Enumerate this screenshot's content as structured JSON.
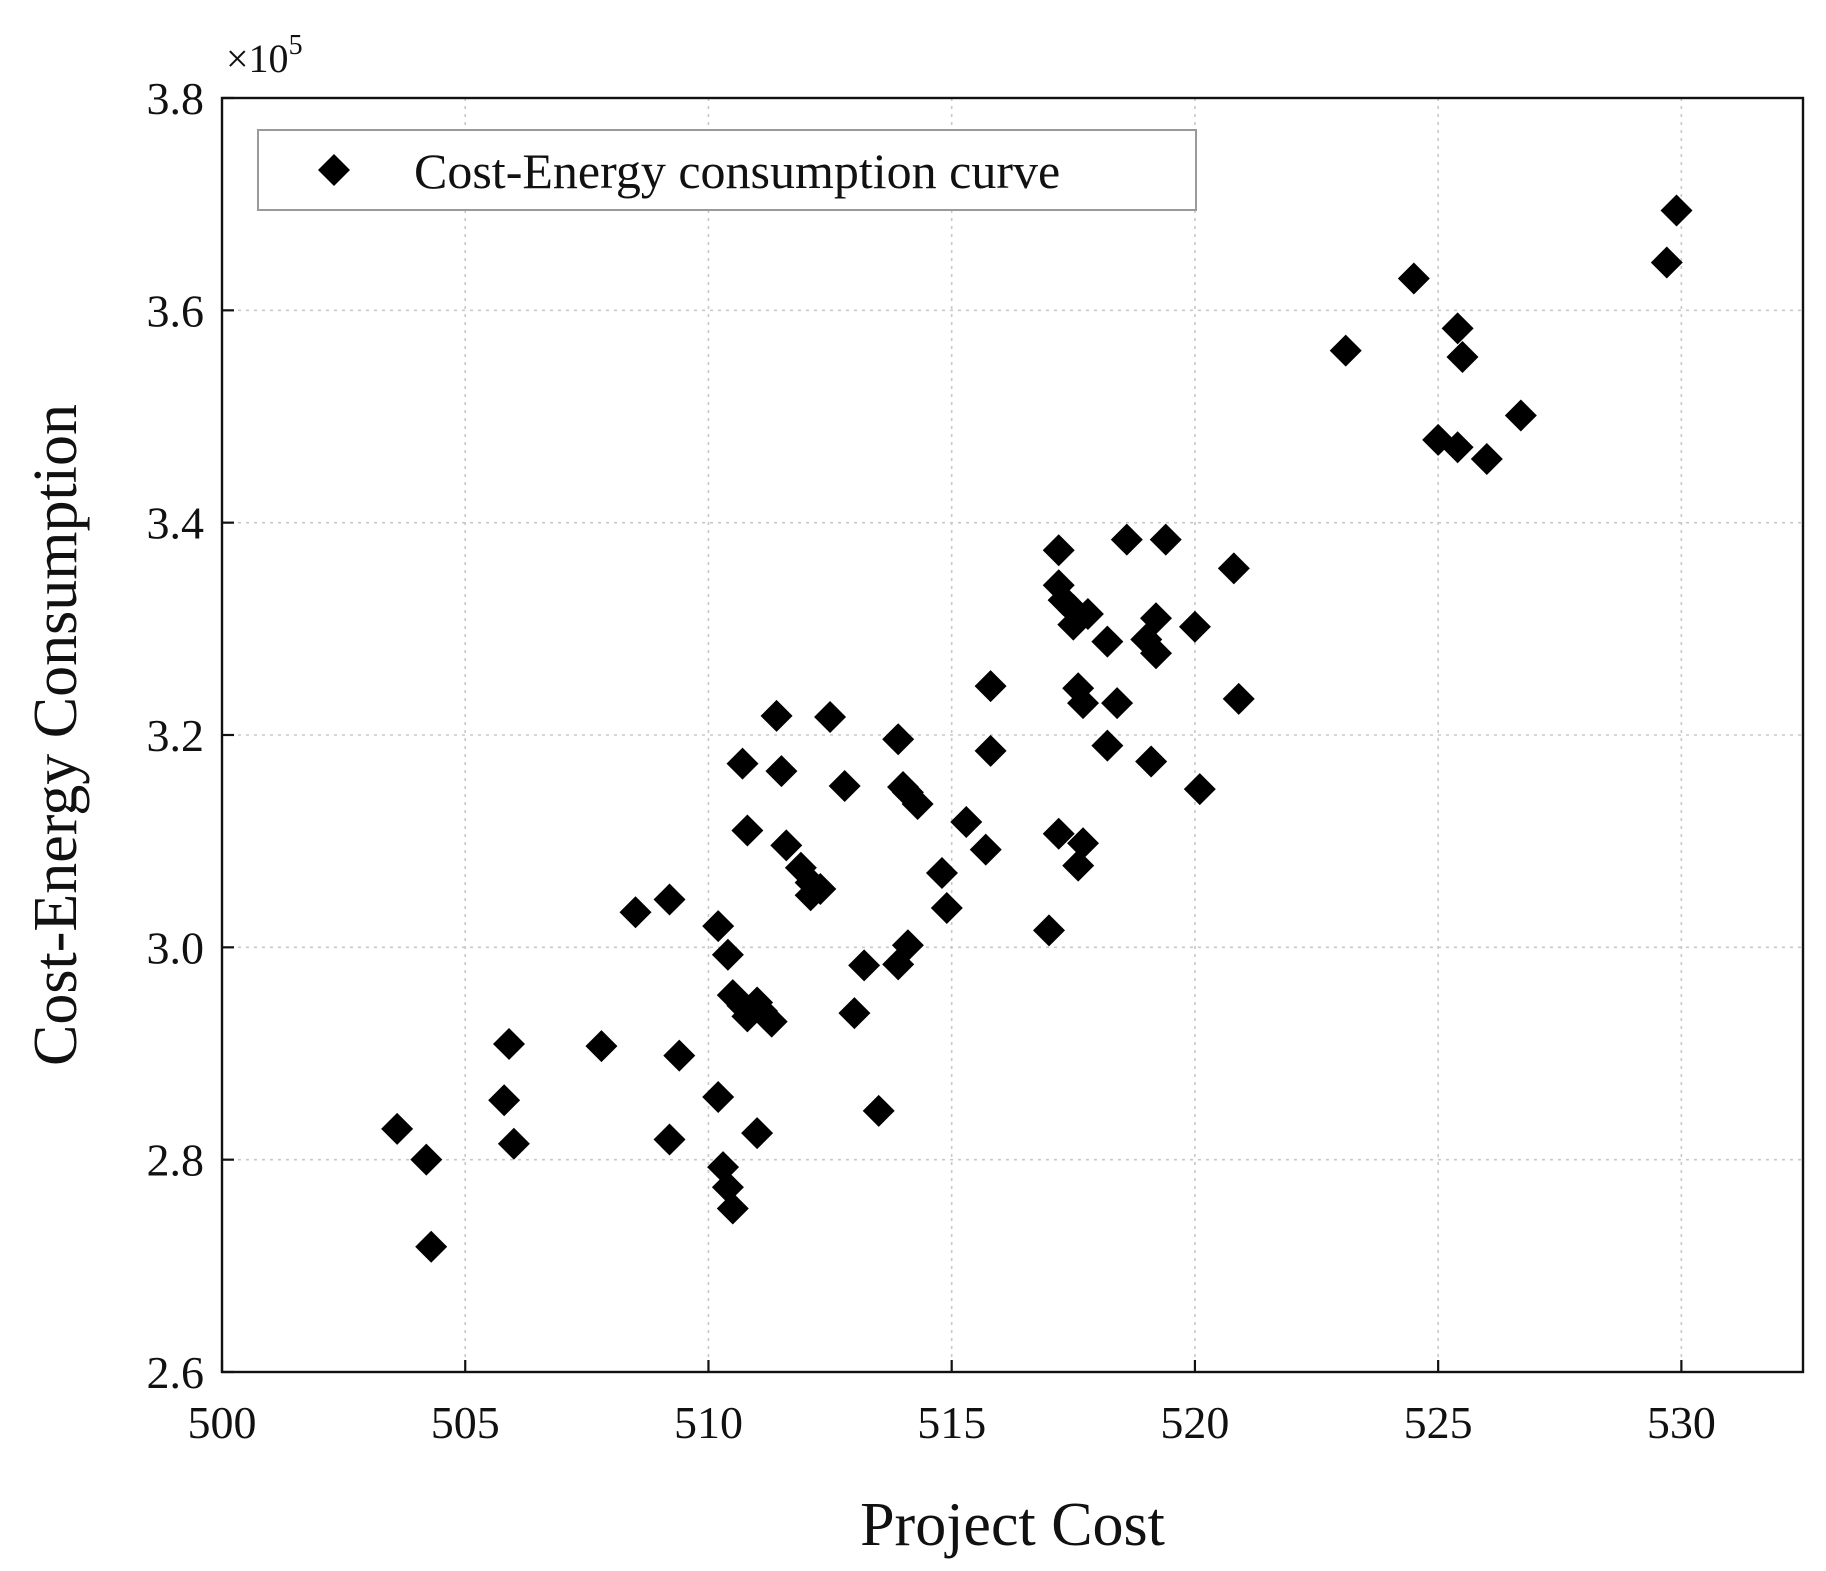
{
  "chart_data": {
    "type": "scatter",
    "title": "",
    "xlabel": "Project Cost",
    "ylabel": "Cost-Energy Consumption",
    "y_multiplier_label": "×10",
    "y_multiplier_exponent": "5",
    "xlim": [
      500,
      532.5
    ],
    "ylim": [
      2.6,
      3.8
    ],
    "x_ticks": [
      500,
      505,
      510,
      515,
      520,
      525,
      530
    ],
    "x_tick_labels": [
      "500",
      "505",
      "510",
      "515",
      "520",
      "525",
      "530"
    ],
    "y_ticks": [
      2.6,
      2.8,
      3.0,
      3.2,
      3.4,
      3.6,
      3.8
    ],
    "y_tick_labels": [
      "2.6",
      "2.8",
      "3.0",
      "3.2",
      "3.4",
      "3.6",
      "3.8"
    ],
    "grid": true,
    "legend_position": "top-left",
    "marker": "diamond",
    "marker_color": "#000000",
    "series": [
      {
        "name": "Cost-Energy consumption curve",
        "points": [
          [
            503.6,
            2.829
          ],
          [
            504.2,
            2.8
          ],
          [
            504.3,
            2.718
          ],
          [
            505.8,
            2.856
          ],
          [
            505.9,
            2.909
          ],
          [
            506.0,
            2.815
          ],
          [
            507.8,
            2.907
          ],
          [
            508.5,
            3.033
          ],
          [
            509.2,
            3.045
          ],
          [
            509.2,
            2.819
          ],
          [
            509.4,
            2.898
          ],
          [
            510.2,
            3.02
          ],
          [
            510.4,
            2.993
          ],
          [
            510.2,
            2.859
          ],
          [
            510.3,
            2.793
          ],
          [
            510.4,
            2.774
          ],
          [
            510.5,
            2.754
          ],
          [
            510.5,
            2.955
          ],
          [
            510.7,
            2.945
          ],
          [
            510.8,
            2.935
          ],
          [
            511.0,
            2.948
          ],
          [
            511.1,
            2.94
          ],
          [
            511.3,
            2.93
          ],
          [
            511.0,
            2.825
          ],
          [
            510.7,
            3.173
          ],
          [
            510.8,
            3.11
          ],
          [
            511.4,
            3.218
          ],
          [
            511.5,
            3.166
          ],
          [
            511.6,
            3.096
          ],
          [
            511.9,
            3.075
          ],
          [
            512.1,
            3.061
          ],
          [
            512.1,
            3.049
          ],
          [
            512.3,
            3.055
          ],
          [
            512.5,
            3.217
          ],
          [
            512.8,
            3.152
          ],
          [
            513.0,
            2.938
          ],
          [
            513.2,
            2.983
          ],
          [
            513.5,
            2.846
          ],
          [
            513.9,
            3.196
          ],
          [
            514.0,
            3.151
          ],
          [
            514.1,
            3.146
          ],
          [
            514.3,
            3.135
          ],
          [
            513.9,
            2.984
          ],
          [
            514.1,
            3.002
          ],
          [
            514.8,
            3.07
          ],
          [
            514.9,
            3.037
          ],
          [
            515.3,
            3.118
          ],
          [
            515.7,
            3.092
          ],
          [
            515.8,
            3.185
          ],
          [
            515.8,
            3.246
          ],
          [
            517.0,
            3.016
          ],
          [
            517.2,
            3.107
          ],
          [
            517.6,
            3.077
          ],
          [
            517.7,
            3.098
          ],
          [
            517.2,
            3.374
          ],
          [
            517.2,
            3.341
          ],
          [
            517.3,
            3.327
          ],
          [
            517.5,
            3.318
          ],
          [
            517.5,
            3.304
          ],
          [
            517.8,
            3.314
          ],
          [
            517.6,
            3.244
          ],
          [
            517.7,
            3.23
          ],
          [
            518.2,
            3.288
          ],
          [
            518.2,
            3.19
          ],
          [
            518.4,
            3.23
          ],
          [
            518.6,
            3.384
          ],
          [
            519.0,
            3.29
          ],
          [
            519.2,
            3.31
          ],
          [
            519.2,
            3.277
          ],
          [
            519.1,
            3.175
          ],
          [
            519.4,
            3.384
          ],
          [
            520.0,
            3.302
          ],
          [
            520.1,
            3.149
          ],
          [
            520.8,
            3.357
          ],
          [
            520.9,
            3.234
          ],
          [
            523.1,
            3.562
          ],
          [
            524.5,
            3.63
          ],
          [
            525.0,
            3.478
          ],
          [
            525.4,
            3.471
          ],
          [
            525.4,
            3.583
          ],
          [
            525.5,
            3.556
          ],
          [
            526.0,
            3.46
          ],
          [
            526.7,
            3.501
          ],
          [
            529.7,
            3.645
          ],
          [
            529.9,
            3.694
          ]
        ]
      }
    ]
  }
}
